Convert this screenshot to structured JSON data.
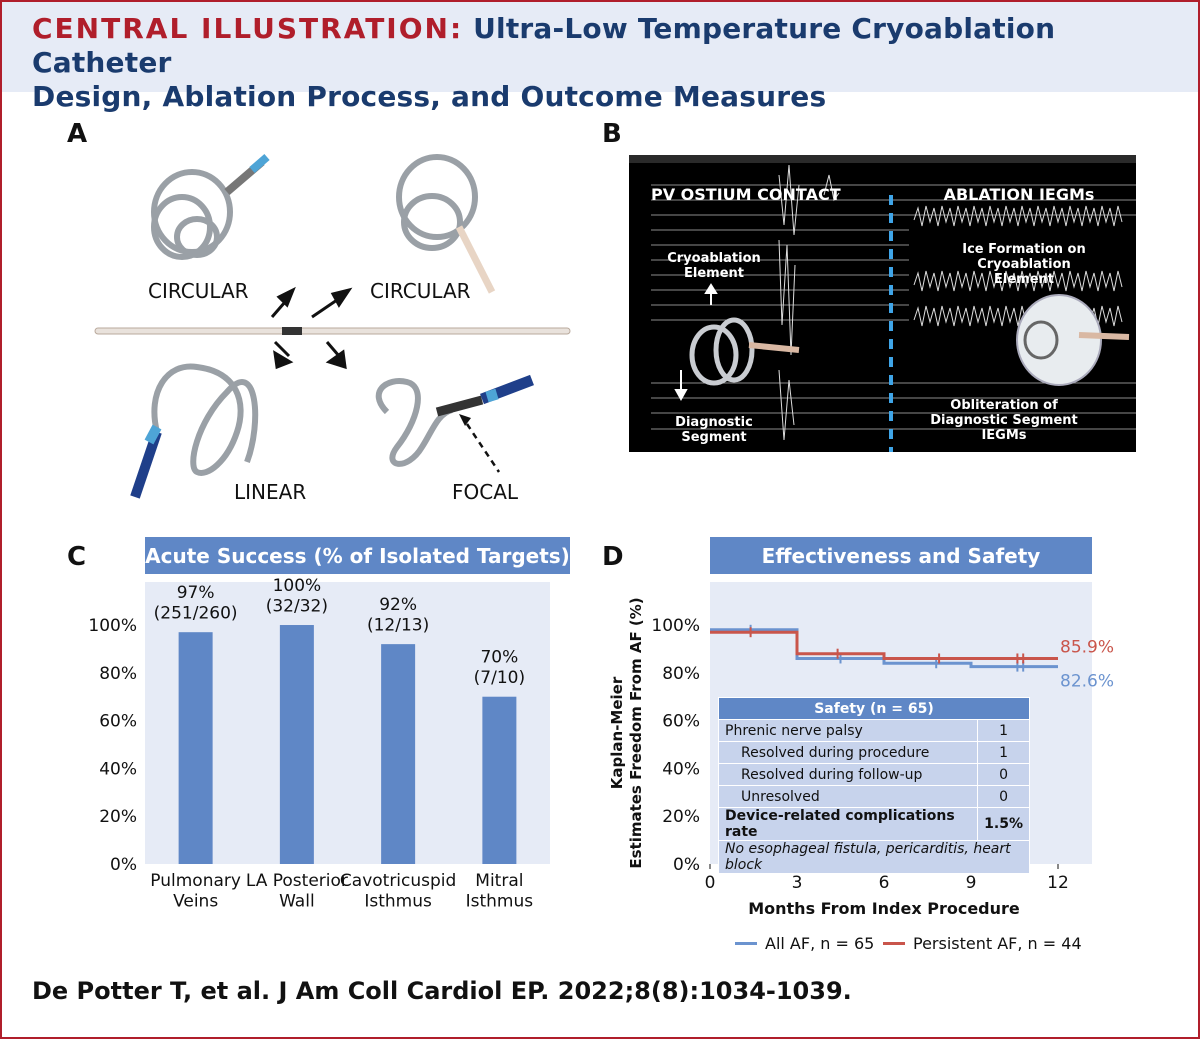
{
  "header": {
    "label": "CENTRAL ILLUSTRATION:",
    "title_line1": "Ultra-Low Temperature Cryoablation Catheter",
    "title_line2": "Design, Ablation Process, and Outcome Measures"
  },
  "panel_a": {
    "letter": "A",
    "labels": [
      "CIRCULAR",
      "CIRCULAR",
      "LINEAR",
      "FOCAL"
    ]
  },
  "panel_b": {
    "letter": "B",
    "left_title": "PV OSTIUM CONTACT",
    "right_title": "ABLATION IEGMs",
    "cryo_element": "Cryoablation\nElement",
    "diag_segment": "Diagnostic\nSegment",
    "ice_formation": "Ice Formation on\nCryoablation\nElement",
    "obliteration": "Obliteration of\nDiagnostic Segment\nIEGMs"
  },
  "colors": {
    "accent_red": "#b01e2b",
    "accent_blue": "#5f87c6",
    "bar_blue": "#5f87c6",
    "series_all": "#6b93cf",
    "series_persistent": "#c9554b",
    "plot_bg": "#e6ebf6"
  },
  "chart_data": [
    {
      "type": "bar",
      "letter": "C",
      "title": "Acute Success (% of Isolated Targets)",
      "categories": [
        "Pulmonary\nVeins",
        "LA Posterior\nWall",
        "Cavotricuspid\nIsthmus",
        "Mitral\nIsthmus"
      ],
      "values": [
        97,
        100,
        92,
        70
      ],
      "value_labels": [
        "97%\n(251/260)",
        "100%\n(32/32)",
        "92%\n(12/13)",
        "70%\n(7/10)"
      ],
      "yticks": [
        "0%",
        "20%",
        "40%",
        "60%",
        "80%",
        "100%"
      ],
      "ylim": [
        0,
        100
      ],
      "grid": false
    },
    {
      "type": "line",
      "letter": "D",
      "title": "Effectiveness and Safety",
      "xlabel": "Months From Index Procedure",
      "ylabel": "Kaplan-Meier\nEstimates Freedom From AF (%)",
      "xticks": [
        "0",
        "3",
        "6",
        "9",
        "12"
      ],
      "yticks": [
        "0%",
        "20%",
        "40%",
        "60%",
        "80%",
        "100%"
      ],
      "xlim": [
        0,
        12
      ],
      "ylim": [
        0,
        100
      ],
      "series": [
        {
          "name": "All AF, n = 65",
          "steps": [
            [
              0,
              98
            ],
            [
              3,
              98
            ],
            [
              3,
              86
            ],
            [
              6,
              86
            ],
            [
              6,
              84
            ],
            [
              9,
              84
            ],
            [
              9,
              82.6
            ],
            [
              12,
              82.6
            ]
          ],
          "censors": [
            [
              1.4,
              98
            ],
            [
              4.5,
              86
            ],
            [
              7.8,
              84
            ],
            [
              10.6,
              82.6
            ],
            [
              10.8,
              82.6
            ]
          ],
          "end_label": "82.6%"
        },
        {
          "name": "Persistent AF, n = 44",
          "steps": [
            [
              0,
              97
            ],
            [
              3,
              97
            ],
            [
              3,
              88
            ],
            [
              6,
              88
            ],
            [
              6,
              86
            ],
            [
              12,
              86
            ]
          ],
          "censors": [
            [
              1.4,
              97
            ],
            [
              4.4,
              88
            ],
            [
              7.9,
              86
            ],
            [
              10.6,
              86
            ],
            [
              10.8,
              86
            ]
          ],
          "end_label": "85.9%"
        }
      ],
      "legend": "bottom"
    }
  ],
  "safety_table": {
    "title": "Safety (n = 65)",
    "rows": [
      {
        "label": "Phrenic nerve palsy",
        "value": "1"
      },
      {
        "label": "Resolved during procedure",
        "value": "1"
      },
      {
        "label": "Resolved during follow-up",
        "value": "0"
      },
      {
        "label": "Unresolved",
        "value": "0"
      },
      {
        "label": "Device-related complications rate",
        "value": "1.5%"
      }
    ],
    "note": "No esophageal fistula, pericarditis, heart block"
  },
  "citation": "De Potter T, et al. J Am Coll Cardiol EP. 2022;8(8):1034-1039."
}
